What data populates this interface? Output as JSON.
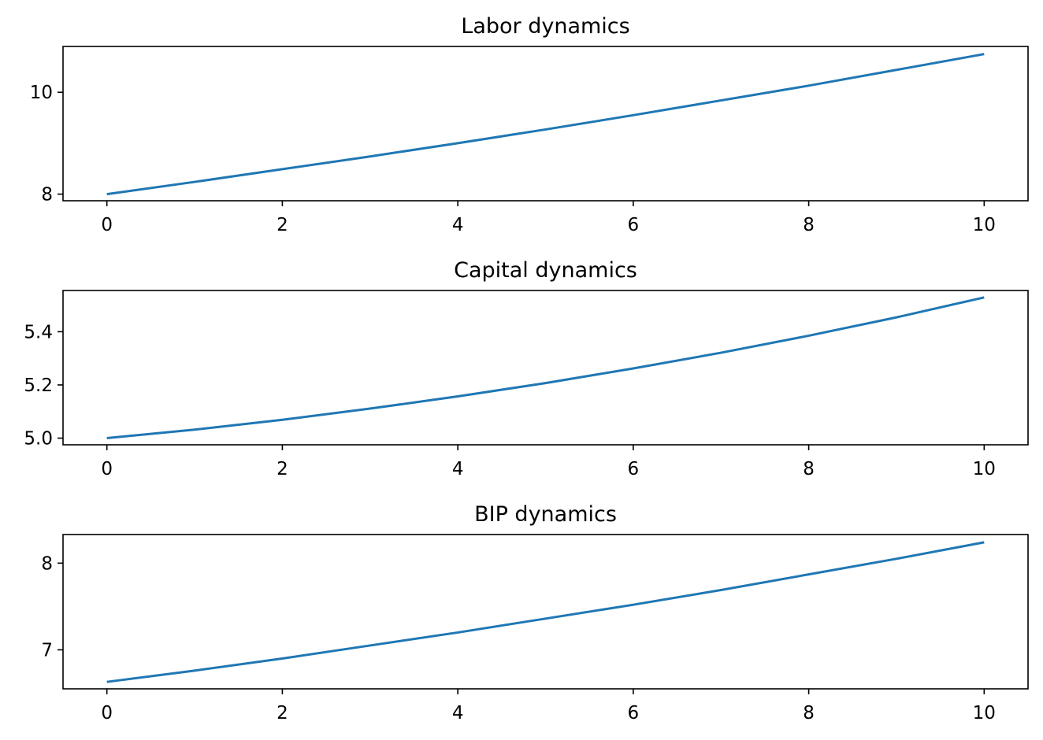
{
  "chart_data": [
    {
      "type": "line",
      "title": "Labor dynamics",
      "xlabel": "",
      "ylabel": "",
      "xlim": [
        -0.5,
        10.5
      ],
      "ylim": [
        7.87,
        10.9
      ],
      "xticks": [
        0,
        2,
        4,
        6,
        8,
        10
      ],
      "yticks": [
        8,
        10
      ],
      "xtick_labels": [
        "0",
        "2",
        "4",
        "6",
        "8",
        "10"
      ],
      "ytick_labels": [
        "8",
        "10"
      ],
      "grid": false,
      "color": "#1f77b4",
      "series": [
        {
          "x": [
            0,
            1,
            2,
            3,
            4,
            5,
            6,
            7,
            8,
            9,
            10
          ],
          "values": [
            8.0,
            8.24,
            8.49,
            8.74,
            9.0,
            9.27,
            9.55,
            9.84,
            10.13,
            10.44,
            10.75
          ]
        }
      ]
    },
    {
      "type": "line",
      "title": "Capital dynamics",
      "xlabel": "",
      "ylabel": "",
      "xlim": [
        -0.5,
        10.5
      ],
      "ylim": [
        4.975,
        5.555
      ],
      "xticks": [
        0,
        2,
        4,
        6,
        8,
        10
      ],
      "yticks": [
        5.0,
        5.2,
        5.4
      ],
      "xtick_labels": [
        "0",
        "2",
        "4",
        "6",
        "8",
        "10"
      ],
      "ytick_labels": [
        "5.0",
        "5.2",
        "5.4"
      ],
      "grid": false,
      "color": "#1f77b4",
      "series": [
        {
          "x": [
            0,
            1,
            2,
            3,
            4,
            5,
            6,
            7,
            8,
            9,
            10
          ],
          "values": [
            5.0,
            5.032,
            5.069,
            5.111,
            5.157,
            5.207,
            5.262,
            5.321,
            5.385,
            5.454,
            5.529
          ]
        }
      ]
    },
    {
      "type": "line",
      "title": "BIP dynamics",
      "xlabel": "",
      "ylabel": "",
      "xlim": [
        -0.5,
        10.5
      ],
      "ylim": [
        6.55,
        8.33
      ],
      "xticks": [
        0,
        2,
        4,
        6,
        8,
        10
      ],
      "yticks": [
        7,
        8
      ],
      "xtick_labels": [
        "0",
        "2",
        "4",
        "6",
        "8",
        "10"
      ],
      "ytick_labels": [
        "7",
        "8"
      ],
      "grid": false,
      "color": "#1f77b4",
      "series": [
        {
          "x": [
            0,
            1,
            2,
            3,
            4,
            5,
            6,
            7,
            8,
            9,
            10
          ],
          "values": [
            6.63,
            6.76,
            6.9,
            7.05,
            7.2,
            7.36,
            7.52,
            7.69,
            7.87,
            8.05,
            8.24
          ]
        }
      ]
    }
  ]
}
